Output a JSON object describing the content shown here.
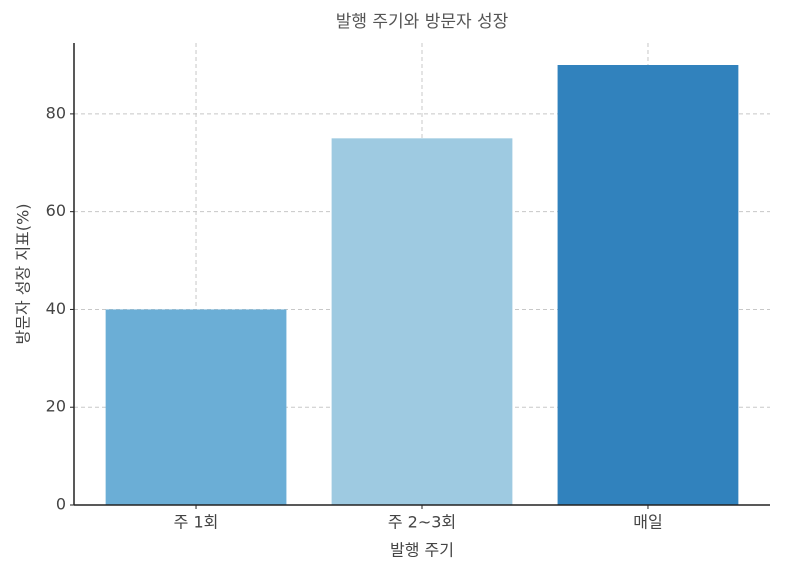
{
  "chart_data": {
    "type": "bar",
    "title": "발행 주기와 방문자 성장",
    "x_label": "발행 주기",
    "y_label": "방문자 성장 지표(%)",
    "categories": [
      "주 1회",
      "주 2~3회",
      "매일"
    ],
    "values": [
      40,
      75,
      90
    ],
    "colors": [
      "#6baed6",
      "#9ecae1",
      "#3182bd"
    ],
    "ylim": [
      0,
      94.5
    ],
    "yticks": [
      0,
      20,
      40,
      60,
      80
    ],
    "grid": true
  }
}
